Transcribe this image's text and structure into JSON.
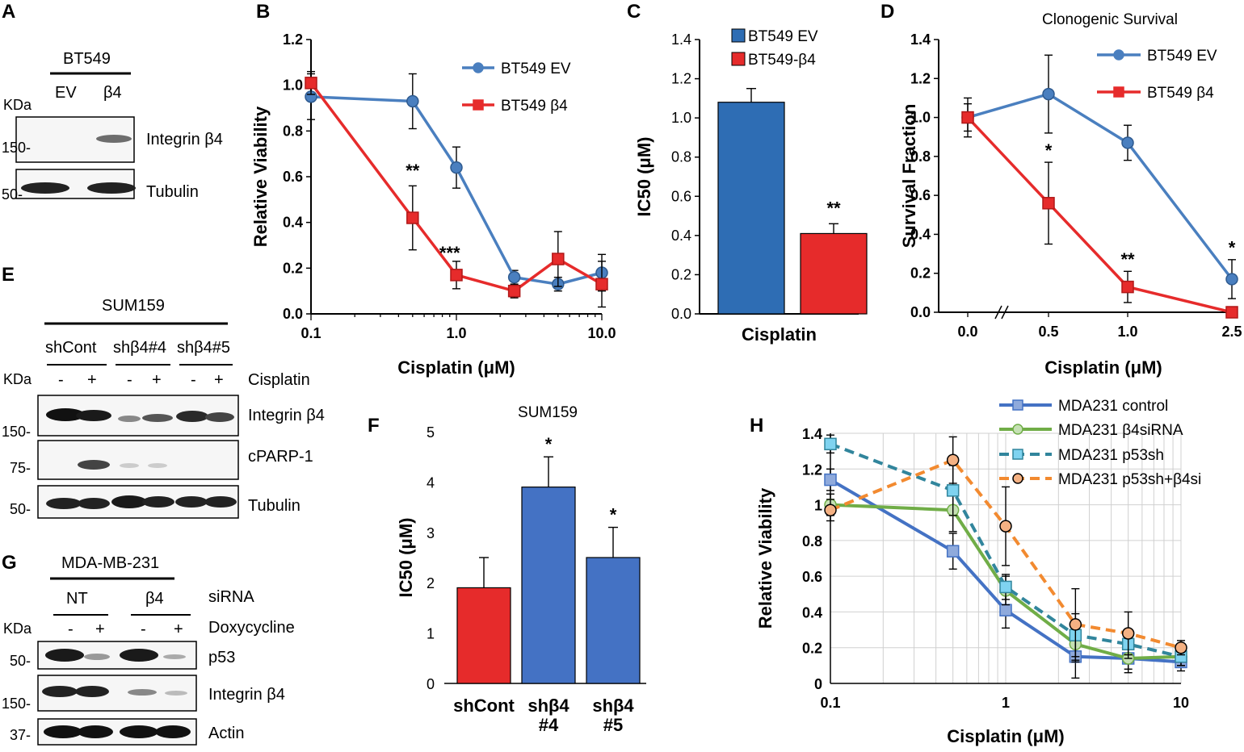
{
  "panel_letters": {
    "A": "A",
    "B": "B",
    "C": "C",
    "D": "D",
    "E": "E",
    "F": "F",
    "G": "G",
    "H": "H"
  },
  "blot_a": {
    "cell_line": "BT549",
    "lanes": [
      "EV",
      "β4"
    ],
    "kda_label": "KDa",
    "markers": [
      "150-",
      "50-"
    ],
    "bands": [
      "Integrin β4",
      "Tubulin"
    ]
  },
  "blot_e": {
    "cell_line": "SUM159",
    "groups": [
      "shCont",
      "shβ4#4",
      "shβ4#5"
    ],
    "kda_label": "KDa",
    "treatment_signs": [
      "-",
      "+",
      "-",
      "+",
      "-",
      "+"
    ],
    "treatment_label": "Cisplatin",
    "markers": [
      "150-",
      "75-",
      "50-"
    ],
    "bands": [
      "Integrin β4",
      "cPARP-1",
      "Tubulin"
    ]
  },
  "blot_g": {
    "cell_line": "MDA-MB-231",
    "groups": [
      "NT",
      "β4"
    ],
    "group_label": "siRNA",
    "kda_label": "KDa",
    "treatment_signs": [
      "-",
      "+",
      "-",
      "+"
    ],
    "treatment_label": "Doxycycline",
    "markers": [
      "50-",
      "150-",
      "37-"
    ],
    "bands": [
      "p53",
      "Integrin β4",
      "Actin"
    ]
  },
  "chart_data": [
    {
      "id": "B",
      "type": "line",
      "xscale": "log",
      "title": "",
      "xlabel": "Cisplatin (μM)",
      "ylabel": "Relative Viability",
      "xlim": [
        0.1,
        10
      ],
      "ylim": [
        0,
        1.2
      ],
      "xticks": [
        0.1,
        1.0,
        10.0
      ],
      "xtick_labels": [
        "0.1",
        "1.0",
        "10.0"
      ],
      "yticks": [
        0.0,
        0.2,
        0.4,
        0.6,
        0.8,
        1.0,
        1.2
      ],
      "ytick_labels": [
        "0.0",
        "0.2",
        "0.4",
        "0.6",
        "0.8",
        "1.0",
        "1.2"
      ],
      "legend": "right",
      "series": [
        {
          "name": "BT549 EV",
          "color": "#4a7fbf",
          "marker": "circle",
          "x": [
            0.1,
            0.5,
            1.0,
            2.5,
            5.0,
            10.0
          ],
          "values": [
            0.95,
            0.93,
            0.64,
            0.16,
            0.13,
            0.18
          ],
          "errors": [
            0.1,
            0.12,
            0.09,
            0.03,
            0.03,
            0.08
          ]
        },
        {
          "name": "BT549 β4",
          "color": "#e62b2b",
          "marker": "square",
          "x": [
            0.1,
            0.5,
            1.0,
            2.5,
            5.0,
            10.0
          ],
          "values": [
            1.01,
            0.42,
            0.17,
            0.1,
            0.24,
            0.13
          ],
          "errors": [
            0.05,
            0.14,
            0.06,
            0.03,
            0.12,
            0.1
          ]
        }
      ],
      "annotations": [
        {
          "text": "**",
          "x": 0.5,
          "y": 0.6
        },
        {
          "text": "***",
          "x": 0.9,
          "y": 0.24
        }
      ]
    },
    {
      "id": "C",
      "type": "bar",
      "title": "",
      "xlabel": "Cisplatin",
      "ylabel": "IC50 (μM)",
      "ylim": [
        0,
        1.4
      ],
      "yticks": [
        0.0,
        0.2,
        0.4,
        0.6,
        0.8,
        1.0,
        1.2,
        1.4
      ],
      "ytick_labels": [
        "0.0",
        "0.2",
        "0.4",
        "0.6",
        "0.8",
        "1.0",
        "1.2",
        "1.4"
      ],
      "legend": "top",
      "series": [
        {
          "name": "BT549 EV",
          "color": "#2e6db4",
          "values": [
            1.08
          ],
          "errors": [
            0.07
          ]
        },
        {
          "name": "BT549-β4",
          "color": "#e62b2b",
          "values": [
            0.41
          ],
          "errors": [
            0.05
          ]
        }
      ],
      "annotations": [
        {
          "text": "**",
          "series": 1
        }
      ]
    },
    {
      "id": "D",
      "type": "line",
      "title": "Clonogenic Survival",
      "xlabel": "Cisplatin (μM)",
      "ylabel": "Survival Fraction",
      "xlim": [
        0,
        2.5
      ],
      "ylim": [
        0,
        1.4
      ],
      "xticks": [
        0.0,
        0.5,
        1.0,
        2.5
      ],
      "xtick_labels": [
        "0.0",
        "0.5",
        "1.0",
        "2.5"
      ],
      "yticks": [
        0.0,
        0.2,
        0.4,
        0.6,
        0.8,
        1.0,
        1.2,
        1.4
      ],
      "ytick_labels": [
        "0.0",
        "0.2",
        "0.4",
        "0.6",
        "0.8",
        "1.0",
        "1.2",
        "1.4"
      ],
      "axis_break": true,
      "legend": "top-right",
      "series": [
        {
          "name": "BT549 EV",
          "color": "#4a7fbf",
          "marker": "circle",
          "x": [
            0,
            0.5,
            1.0,
            2.5
          ],
          "values": [
            1.0,
            1.12,
            0.87,
            0.17
          ],
          "errors": [
            0.1,
            0.2,
            0.09,
            0.1
          ]
        },
        {
          "name": "BT549 β4",
          "color": "#e62b2b",
          "marker": "square",
          "x": [
            0,
            0.5,
            1.0,
            2.5
          ],
          "values": [
            1.0,
            0.56,
            0.13,
            0.0
          ],
          "errors": [
            0.07,
            0.21,
            0.08,
            0.0
          ]
        }
      ],
      "annotations": [
        {
          "text": "*",
          "x": 0.5,
          "y": 0.8
        },
        {
          "text": "**",
          "x": 1.0,
          "y": 0.24
        },
        {
          "text": "*",
          "x": 2.5,
          "y": 0.3
        }
      ]
    },
    {
      "id": "F",
      "type": "bar",
      "title": "SUM159",
      "xlabel": "",
      "ylabel": "IC50 (μM)",
      "ylim": [
        0,
        5
      ],
      "yticks": [
        0,
        1,
        2,
        3,
        4,
        5
      ],
      "ytick_labels": [
        "0",
        "1",
        "2",
        "3",
        "4",
        "5"
      ],
      "categories": [
        [
          "shCont"
        ],
        [
          "shβ4",
          "#4"
        ],
        [
          "shβ4",
          "#5"
        ]
      ],
      "values": [
        1.9,
        3.9,
        2.5
      ],
      "errors": [
        0.6,
        0.6,
        0.6
      ],
      "colors": [
        "#e62b2b",
        "#4472c4",
        "#4472c4"
      ],
      "annotations": [
        "",
        "*",
        "*"
      ]
    },
    {
      "id": "H",
      "type": "line",
      "xscale": "log",
      "title": "",
      "xlabel": "Cisplatin (μM)",
      "ylabel": "Relative Viability",
      "xlim": [
        0.1,
        10
      ],
      "ylim": [
        0,
        1.4
      ],
      "xticks": [
        0.1,
        1,
        10
      ],
      "xtick_labels": [
        "0.1",
        "1",
        "10"
      ],
      "yticks": [
        0,
        0.2,
        0.4,
        0.6,
        0.8,
        1,
        1.2,
        1.4
      ],
      "ytick_labels": [
        "0",
        "0.2",
        "0.4",
        "0.6",
        "0.8",
        "1",
        "1.2",
        "1.4"
      ],
      "grid": true,
      "legend": "top-right",
      "series": [
        {
          "name": "MDA231 control",
          "color": "#4472c4",
          "fill": "#8faadc",
          "marker": "square",
          "dashed": false,
          "x": [
            0.1,
            0.5,
            1,
            2.5,
            5,
            10
          ],
          "values": [
            1.14,
            0.74,
            0.41,
            0.15,
            0.14,
            0.12
          ],
          "errors": [
            0.06,
            0.1,
            0.1,
            0.12,
            0.08,
            0.05
          ]
        },
        {
          "name": "MDA231 β4siRNA",
          "color": "#70ad47",
          "fill": "#c5e0b4",
          "marker": "circle",
          "dashed": false,
          "x": [
            0.1,
            0.5,
            1,
            2.5,
            5,
            10
          ],
          "values": [
            1.0,
            0.97,
            0.52,
            0.22,
            0.14,
            0.15
          ],
          "errors": [
            0.06,
            0.12,
            0.08,
            0.1,
            0.06,
            0.05
          ]
        },
        {
          "name": "MDA231 p53sh",
          "color": "#31859c",
          "fill": "#7fd3f0",
          "marker": "square",
          "dashed": true,
          "x": [
            0.1,
            0.5,
            1,
            2.5,
            5,
            10
          ],
          "values": [
            1.34,
            1.08,
            0.54,
            0.27,
            0.22,
            0.15
          ],
          "errors": [
            0.05,
            0.14,
            0.07,
            0.12,
            0.08,
            0.05
          ]
        },
        {
          "name": "MDA231 p53sh+β4si",
          "color": "#f28a30",
          "fill": "#f4b183",
          "marker": "circle",
          "dashed": true,
          "x": [
            0.1,
            0.5,
            1,
            2.5,
            5,
            10
          ],
          "values": [
            0.97,
            1.25,
            0.88,
            0.33,
            0.28,
            0.2
          ],
          "errors": [
            0.06,
            0.13,
            0.22,
            0.2,
            0.12,
            0.04
          ]
        }
      ]
    }
  ]
}
